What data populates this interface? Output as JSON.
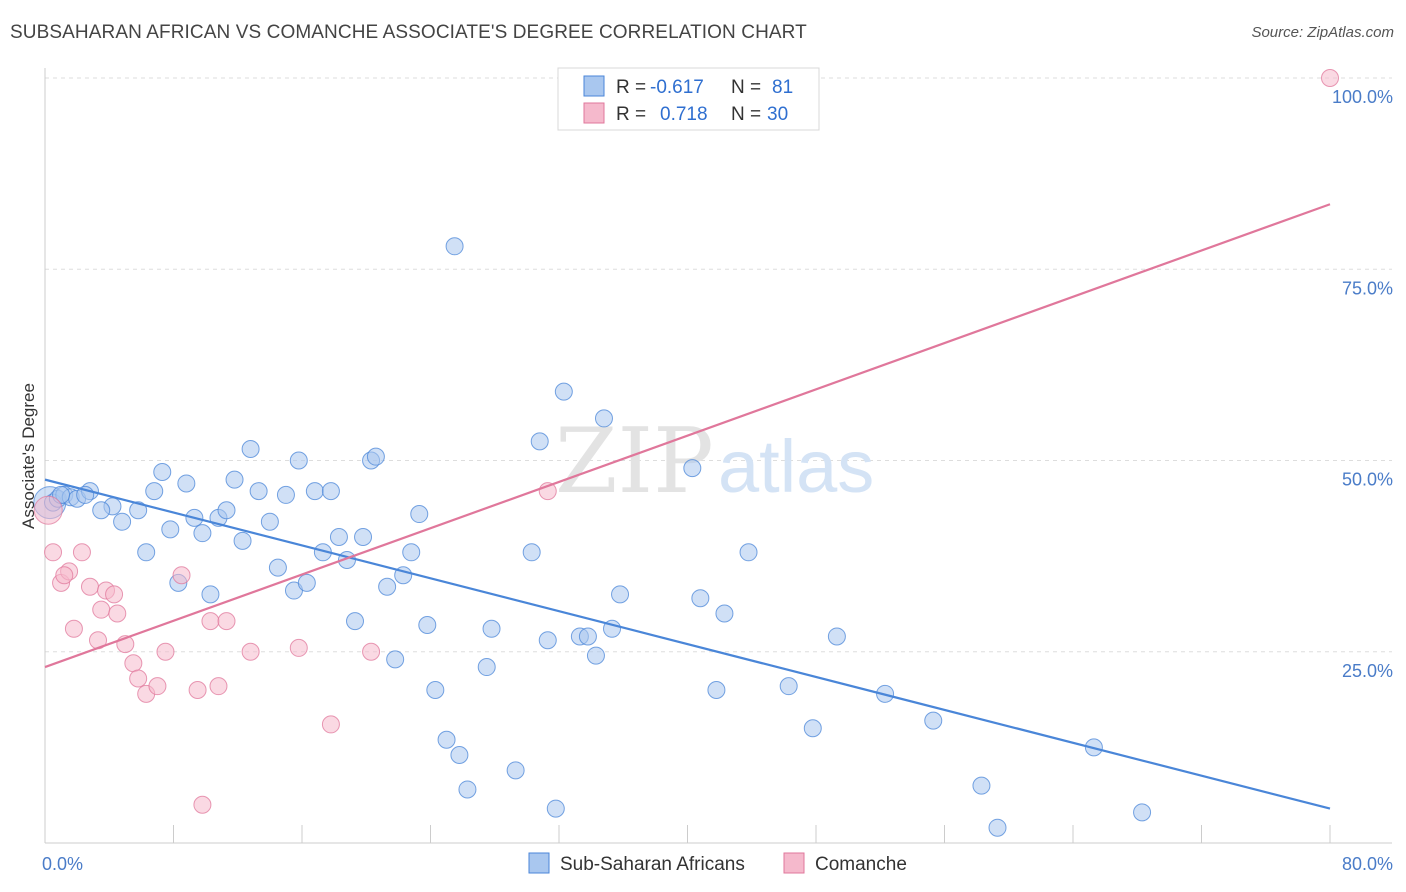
{
  "header": {
    "title": "SUBSAHARAN AFRICAN VS COMANCHE ASSOCIATE'S DEGREE CORRELATION CHART",
    "source": "Source: ZipAtlas.com"
  },
  "watermark": {
    "zip": "ZIP",
    "atlas": "atlas"
  },
  "chart_data": {
    "type": "scatter",
    "xlabel": "",
    "ylabel": "Associate's Degree",
    "xlim": [
      0,
      80
    ],
    "ylim": [
      0,
      100
    ],
    "x_tick_labels": [
      {
        "value": 0,
        "label": "0.0%"
      },
      {
        "value": 80,
        "label": "80.0%"
      }
    ],
    "y_tick_labels": [
      {
        "value": 25,
        "label": "25.0%"
      },
      {
        "value": 50,
        "label": "50.0%"
      },
      {
        "value": 75,
        "label": "75.0%"
      },
      {
        "value": 100,
        "label": "100.0%"
      }
    ],
    "grid": true,
    "legend_position": "top-center",
    "stats": [
      {
        "r_label": "R =",
        "r_value": "-0.617",
        "n_label": "N =",
        "n_value": "81"
      },
      {
        "r_label": "R =",
        "r_value": "0.718",
        "n_label": "N =",
        "n_value": "30"
      }
    ],
    "series": [
      {
        "name": "Sub-Saharan Africans",
        "color": "#4a86d8",
        "fill": "#a9c7ef",
        "trend": {
          "x0": 0,
          "y0": 47.5,
          "x1": 80,
          "y1": 4.5
        },
        "points": [
          [
            0.5,
            44.5
          ],
          [
            0.8,
            45
          ],
          [
            1.2,
            45.5
          ],
          [
            1.6,
            45.2
          ],
          [
            2,
            45
          ],
          [
            2.8,
            46
          ],
          [
            4.2,
            44
          ],
          [
            3.5,
            43.5
          ],
          [
            5.8,
            43.5
          ],
          [
            4.8,
            42
          ],
          [
            6.3,
            38
          ],
          [
            6.8,
            46
          ],
          [
            7.3,
            48.5
          ],
          [
            7.8,
            41
          ],
          [
            8.3,
            34
          ],
          [
            8.8,
            47
          ],
          [
            9.3,
            42.5
          ],
          [
            9.8,
            40.5
          ],
          [
            10.3,
            32.5
          ],
          [
            10.8,
            42.5
          ],
          [
            11.3,
            43.5
          ],
          [
            11.8,
            47.5
          ],
          [
            12.3,
            39.5
          ],
          [
            12.8,
            51.5
          ],
          [
            13.3,
            46
          ],
          [
            14,
            42
          ],
          [
            14.5,
            36
          ],
          [
            15,
            45.5
          ],
          [
            15.5,
            33
          ],
          [
            15.8,
            50
          ],
          [
            16.3,
            34
          ],
          [
            16.8,
            46
          ],
          [
            17.3,
            38
          ],
          [
            17.8,
            46
          ],
          [
            18.3,
            40
          ],
          [
            18.8,
            37
          ],
          [
            19.3,
            29
          ],
          [
            19.8,
            40
          ],
          [
            20.3,
            50
          ],
          [
            20.6,
            50.5
          ],
          [
            21.3,
            33.5
          ],
          [
            21.8,
            24
          ],
          [
            22.3,
            35
          ],
          [
            22.8,
            38
          ],
          [
            23.3,
            43
          ],
          [
            23.8,
            28.5
          ],
          [
            24.3,
            20
          ],
          [
            25,
            13.5
          ],
          [
            25.5,
            78
          ],
          [
            25.8,
            11.5
          ],
          [
            26.3,
            7
          ],
          [
            27.5,
            23
          ],
          [
            27.8,
            28
          ],
          [
            29.3,
            9.5
          ],
          [
            30.3,
            38
          ],
          [
            30.8,
            52.5
          ],
          [
            31.3,
            26.5
          ],
          [
            31.8,
            4.5
          ],
          [
            32.3,
            59
          ],
          [
            33.3,
            27
          ],
          [
            33.8,
            27
          ],
          [
            34.3,
            24.5
          ],
          [
            34.8,
            55.5
          ],
          [
            35.3,
            28
          ],
          [
            35.8,
            32.5
          ],
          [
            40.3,
            49
          ],
          [
            40.8,
            32
          ],
          [
            41.8,
            20
          ],
          [
            42.3,
            30
          ],
          [
            43.8,
            38
          ],
          [
            46.3,
            20.5
          ],
          [
            47.8,
            15
          ],
          [
            49.3,
            27
          ],
          [
            52.3,
            19.5
          ],
          [
            55.3,
            16
          ],
          [
            58.3,
            7.5
          ],
          [
            59.3,
            2
          ],
          [
            65.3,
            12.5
          ],
          [
            68.3,
            4
          ],
          [
            1,
            45.5
          ],
          [
            2.5,
            45.5
          ]
        ],
        "big_points": [
          [
            0.3,
            44.5,
            16
          ]
        ]
      },
      {
        "name": "Comanche",
        "color": "#e0779b",
        "fill": "#f5b9cc",
        "trend": {
          "x0": 0,
          "y0": 23,
          "x1": 80,
          "y1": 83.5
        },
        "points": [
          [
            0.5,
            38
          ],
          [
            1,
            34
          ],
          [
            1.5,
            35.5
          ],
          [
            1.8,
            28
          ],
          [
            2.3,
            38
          ],
          [
            2.8,
            33.5
          ],
          [
            3.3,
            26.5
          ],
          [
            3.5,
            30.5
          ],
          [
            3.8,
            33
          ],
          [
            4.3,
            32.5
          ],
          [
            4.5,
            30
          ],
          [
            5,
            26
          ],
          [
            5.5,
            23.5
          ],
          [
            5.8,
            21.5
          ],
          [
            6.3,
            19.5
          ],
          [
            7,
            20.5
          ],
          [
            7.5,
            25
          ],
          [
            8.5,
            35
          ],
          [
            9.5,
            20
          ],
          [
            9.8,
            5
          ],
          [
            10.3,
            29
          ],
          [
            10.8,
            20.5
          ],
          [
            11.3,
            29
          ],
          [
            12.8,
            25
          ],
          [
            15.8,
            25.5
          ],
          [
            17.8,
            15.5
          ],
          [
            20.3,
            25
          ],
          [
            31.3,
            46
          ],
          [
            80,
            100
          ],
          [
            1.2,
            35
          ]
        ],
        "big_points": [
          [
            0.2,
            43.5,
            14
          ]
        ]
      }
    ]
  }
}
